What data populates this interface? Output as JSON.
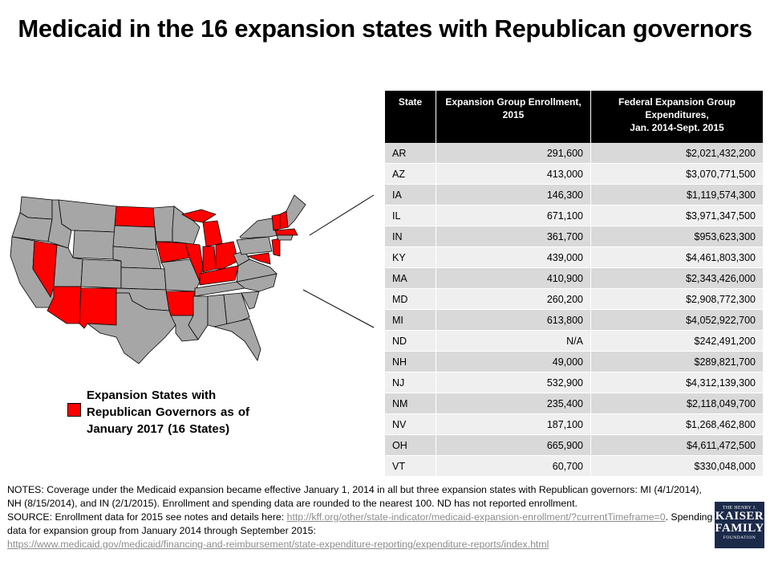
{
  "title": "Medicaid in the 16 expansion states with Republican governors",
  "legend": {
    "text": "Expansion States with Republican Governors as of January 2017 (16 States)",
    "color": "#ff0000"
  },
  "map": {
    "highlight_color": "#ff0000",
    "base_color": "#a6a6a6",
    "highlighted_states": [
      "AR",
      "AZ",
      "IA",
      "IL",
      "IN",
      "KY",
      "MA",
      "MD",
      "MI",
      "ND",
      "NH",
      "NJ",
      "NM",
      "NV",
      "OH",
      "VT"
    ]
  },
  "table": {
    "headers": {
      "state": "State",
      "enrollment": "Expansion Group Enrollment, 2015",
      "exp_line1": "Federal Expansion Group Expenditures,",
      "exp_line2": "Jan. 2014-Sept. 2015"
    },
    "rows": [
      {
        "state": "AR",
        "enrollment": "291,600",
        "expenditures": "$2,021,432,200"
      },
      {
        "state": "AZ",
        "enrollment": "413,000",
        "expenditures": "$3,070,771,500"
      },
      {
        "state": "IA",
        "enrollment": "146,300",
        "expenditures": "$1,119,574,300"
      },
      {
        "state": "IL",
        "enrollment": "671,100",
        "expenditures": "$3,971,347,500"
      },
      {
        "state": "IN",
        "enrollment": "361,700",
        "expenditures": "$953,623,300"
      },
      {
        "state": "KY",
        "enrollment": "439,000",
        "expenditures": "$4,461,803,300"
      },
      {
        "state": "MA",
        "enrollment": "410,900",
        "expenditures": "$2,343,426,000"
      },
      {
        "state": "MD",
        "enrollment": "260,200",
        "expenditures": "$2,908,772,300"
      },
      {
        "state": "MI",
        "enrollment": "613,800",
        "expenditures": "$4,052,922,700"
      },
      {
        "state": "ND",
        "enrollment": "N/A",
        "expenditures": "$242,491,200"
      },
      {
        "state": "NH",
        "enrollment": "49,000",
        "expenditures": "$289,821,700"
      },
      {
        "state": "NJ",
        "enrollment": "532,900",
        "expenditures": "$4,312,139,300"
      },
      {
        "state": "NM",
        "enrollment": "235,400",
        "expenditures": "$2,118,049,700"
      },
      {
        "state": "NV",
        "enrollment": "187,100",
        "expenditures": "$1,268,462,800"
      },
      {
        "state": "OH",
        "enrollment": "665,900",
        "expenditures": "$4,611,472,500"
      },
      {
        "state": "VT",
        "enrollment": "60,700",
        "expenditures": "$330,048,000"
      }
    ]
  },
  "notes": {
    "line1": "NOTES: Coverage under the Medicaid expansion became effective January 1, 2014  in all but three expansion states with Republican governors: MI (4/1/2014),  NH (8/15/2014),  and IN (2/1/2015).  Enrollment and spending data are rounded to the nearest 100.  ND has not reported enrollment.",
    "source_prefix": "SOURCE:  Enrollment data for 2015  see notes and details here: ",
    "link1": "http://kff.org/other/state-indicator/medicaid-expansion-enrollment/?currentTimeframe=0",
    "source_mid": ". Spending data for expansion group from January 2014 through September 2015:",
    "link2": "https://www.medicaid.gov/medicaid/financing-and-reimbursement/state-expenditure-reporting/expenditure-reports/index.html"
  },
  "logo": {
    "line1": "THE HENRY J.",
    "line2": "KAISER",
    "line3": "FAMILY",
    "line4": "FOUNDATION"
  }
}
